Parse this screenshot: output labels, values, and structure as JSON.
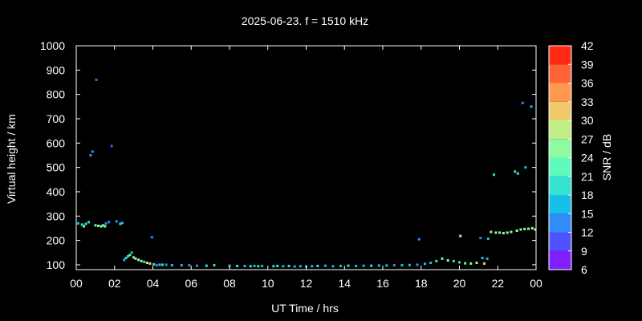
{
  "chart_data": {
    "type": "scatter",
    "title": "2025-06-23. f = 1510 kHz",
    "xlabel": "UT Time / hrs",
    "ylabel": "Virtual height / km",
    "xlim": [
      0,
      24
    ],
    "ylim": [
      80,
      1000
    ],
    "x_ticks": [
      "00",
      "02",
      "04",
      "06",
      "08",
      "10",
      "12",
      "14",
      "16",
      "18",
      "20",
      "22",
      "00"
    ],
    "y_ticks": [
      100,
      200,
      300,
      400,
      500,
      600,
      700,
      800,
      900,
      1000
    ],
    "colorbar": {
      "label": "SNR / dB",
      "range": [
        6,
        42
      ],
      "ticks": [
        6,
        9,
        12,
        15,
        18,
        21,
        24,
        27,
        30,
        33,
        36,
        39,
        42
      ],
      "colors": [
        "#7f1fff",
        "#4f52ff",
        "#2f8cf8",
        "#17bfeb",
        "#34e3d2",
        "#5efbbd",
        "#8efaa2",
        "#c2ee88",
        "#f1c96b",
        "#ff9950",
        "#ff6438",
        "#ff2a15"
      ]
    },
    "grid": false,
    "points": [
      {
        "x": 0.1,
        "y": 270,
        "snr": 16
      },
      {
        "x": 0.3,
        "y": 265,
        "snr": 20
      },
      {
        "x": 0.4,
        "y": 258,
        "snr": 25
      },
      {
        "x": 0.5,
        "y": 268,
        "snr": 18
      },
      {
        "x": 0.65,
        "y": 275,
        "snr": 20
      },
      {
        "x": 0.75,
        "y": 550,
        "snr": 12
      },
      {
        "x": 0.85,
        "y": 565,
        "snr": 12
      },
      {
        "x": 1.05,
        "y": 860,
        "snr": 11
      },
      {
        "x": 1.0,
        "y": 262,
        "snr": 22
      },
      {
        "x": 1.15,
        "y": 260,
        "snr": 24
      },
      {
        "x": 1.3,
        "y": 258,
        "snr": 24
      },
      {
        "x": 1.4,
        "y": 262,
        "snr": 23
      },
      {
        "x": 1.5,
        "y": 258,
        "snr": 25
      },
      {
        "x": 1.55,
        "y": 270,
        "snr": 14
      },
      {
        "x": 1.7,
        "y": 275,
        "snr": 12
      },
      {
        "x": 1.85,
        "y": 588,
        "snr": 11
      },
      {
        "x": 2.1,
        "y": 278,
        "snr": 14
      },
      {
        "x": 2.3,
        "y": 268,
        "snr": 20
      },
      {
        "x": 2.4,
        "y": 272,
        "snr": 16
      },
      {
        "x": 2.5,
        "y": 120,
        "snr": 16
      },
      {
        "x": 2.6,
        "y": 128,
        "snr": 18
      },
      {
        "x": 2.7,
        "y": 135,
        "snr": 20
      },
      {
        "x": 2.8,
        "y": 140,
        "snr": 22
      },
      {
        "x": 2.9,
        "y": 150,
        "snr": 17
      },
      {
        "x": 3.0,
        "y": 130,
        "snr": 28
      },
      {
        "x": 3.1,
        "y": 125,
        "snr": 22
      },
      {
        "x": 3.25,
        "y": 120,
        "snr": 24
      },
      {
        "x": 3.4,
        "y": 115,
        "snr": 26
      },
      {
        "x": 3.55,
        "y": 112,
        "snr": 20
      },
      {
        "x": 3.7,
        "y": 108,
        "snr": 28
      },
      {
        "x": 3.85,
        "y": 105,
        "snr": 32
      },
      {
        "x": 3.95,
        "y": 213,
        "snr": 12
      },
      {
        "x": 4.05,
        "y": 102,
        "snr": 18
      },
      {
        "x": 4.2,
        "y": 98,
        "snr": 14
      },
      {
        "x": 4.35,
        "y": 100,
        "snr": 16
      },
      {
        "x": 4.5,
        "y": 100,
        "snr": 18
      },
      {
        "x": 4.7,
        "y": 100,
        "snr": 14
      },
      {
        "x": 5.0,
        "y": 98,
        "snr": 16
      },
      {
        "x": 5.5,
        "y": 98,
        "snr": 16
      },
      {
        "x": 5.9,
        "y": 98,
        "snr": 14
      },
      {
        "x": 6.3,
        "y": 96,
        "snr": 13
      },
      {
        "x": 6.8,
        "y": 96,
        "snr": 18
      },
      {
        "x": 7.2,
        "y": 98,
        "snr": 20
      },
      {
        "x": 8.0,
        "y": 96,
        "snr": 16
      },
      {
        "x": 8.4,
        "y": 95,
        "snr": 18
      },
      {
        "x": 8.8,
        "y": 95,
        "snr": 17
      },
      {
        "x": 9.1,
        "y": 94,
        "snr": 18
      },
      {
        "x": 9.3,
        "y": 95,
        "snr": 16
      },
      {
        "x": 9.5,
        "y": 94,
        "snr": 19
      },
      {
        "x": 9.7,
        "y": 95,
        "snr": 17
      },
      {
        "x": 10.3,
        "y": 94,
        "snr": 20
      },
      {
        "x": 10.5,
        "y": 95,
        "snr": 18
      },
      {
        "x": 10.8,
        "y": 94,
        "snr": 16
      },
      {
        "x": 11.1,
        "y": 95,
        "snr": 18
      },
      {
        "x": 11.4,
        "y": 93,
        "snr": 17
      },
      {
        "x": 11.7,
        "y": 94,
        "snr": 16
      },
      {
        "x": 12.0,
        "y": 93,
        "snr": 17
      },
      {
        "x": 12.3,
        "y": 94,
        "snr": 16
      },
      {
        "x": 12.6,
        "y": 95,
        "snr": 18
      },
      {
        "x": 13.0,
        "y": 96,
        "snr": 15
      },
      {
        "x": 13.4,
        "y": 94,
        "snr": 17
      },
      {
        "x": 13.8,
        "y": 95,
        "snr": 16
      },
      {
        "x": 14.2,
        "y": 96,
        "snr": 18
      },
      {
        "x": 14.6,
        "y": 95,
        "snr": 15
      },
      {
        "x": 15.0,
        "y": 96,
        "snr": 17
      },
      {
        "x": 15.4,
        "y": 96,
        "snr": 18
      },
      {
        "x": 15.8,
        "y": 97,
        "snr": 16
      },
      {
        "x": 16.2,
        "y": 97,
        "snr": 17
      },
      {
        "x": 16.6,
        "y": 98,
        "snr": 14
      },
      {
        "x": 17.0,
        "y": 98,
        "snr": 15
      },
      {
        "x": 17.4,
        "y": 99,
        "snr": 16
      },
      {
        "x": 17.8,
        "y": 100,
        "snr": 13
      },
      {
        "x": 17.9,
        "y": 205,
        "snr": 13
      },
      {
        "x": 18.2,
        "y": 104,
        "snr": 15
      },
      {
        "x": 18.5,
        "y": 108,
        "snr": 16
      },
      {
        "x": 18.8,
        "y": 115,
        "snr": 18
      },
      {
        "x": 19.1,
        "y": 125,
        "snr": 22
      },
      {
        "x": 19.4,
        "y": 118,
        "snr": 24
      },
      {
        "x": 19.7,
        "y": 115,
        "snr": 20
      },
      {
        "x": 20.0,
        "y": 110,
        "snr": 18
      },
      {
        "x": 20.05,
        "y": 218,
        "snr": 28
      },
      {
        "x": 20.3,
        "y": 106,
        "snr": 22
      },
      {
        "x": 20.6,
        "y": 105,
        "snr": 24
      },
      {
        "x": 20.9,
        "y": 108,
        "snr": 26
      },
      {
        "x": 21.1,
        "y": 210,
        "snr": 14
      },
      {
        "x": 21.2,
        "y": 128,
        "snr": 15
      },
      {
        "x": 21.3,
        "y": 105,
        "snr": 32
      },
      {
        "x": 21.45,
        "y": 125,
        "snr": 16
      },
      {
        "x": 21.5,
        "y": 207,
        "snr": 16
      },
      {
        "x": 21.65,
        "y": 235,
        "snr": 28
      },
      {
        "x": 21.8,
        "y": 470,
        "snr": 18
      },
      {
        "x": 21.9,
        "y": 232,
        "snr": 26
      },
      {
        "x": 22.1,
        "y": 232,
        "snr": 24
      },
      {
        "x": 22.3,
        "y": 230,
        "snr": 26
      },
      {
        "x": 22.5,
        "y": 232,
        "snr": 24
      },
      {
        "x": 22.7,
        "y": 235,
        "snr": 25
      },
      {
        "x": 22.9,
        "y": 483,
        "snr": 18
      },
      {
        "x": 23.05,
        "y": 475,
        "snr": 18
      },
      {
        "x": 23.0,
        "y": 240,
        "snr": 26
      },
      {
        "x": 23.2,
        "y": 245,
        "snr": 24
      },
      {
        "x": 23.3,
        "y": 765,
        "snr": 13
      },
      {
        "x": 23.4,
        "y": 247,
        "snr": 25
      },
      {
        "x": 23.45,
        "y": 500,
        "snr": 16
      },
      {
        "x": 23.6,
        "y": 248,
        "snr": 24
      },
      {
        "x": 23.75,
        "y": 750,
        "snr": 17
      },
      {
        "x": 23.8,
        "y": 250,
        "snr": 26
      },
      {
        "x": 23.95,
        "y": 245,
        "snr": 24
      }
    ]
  }
}
